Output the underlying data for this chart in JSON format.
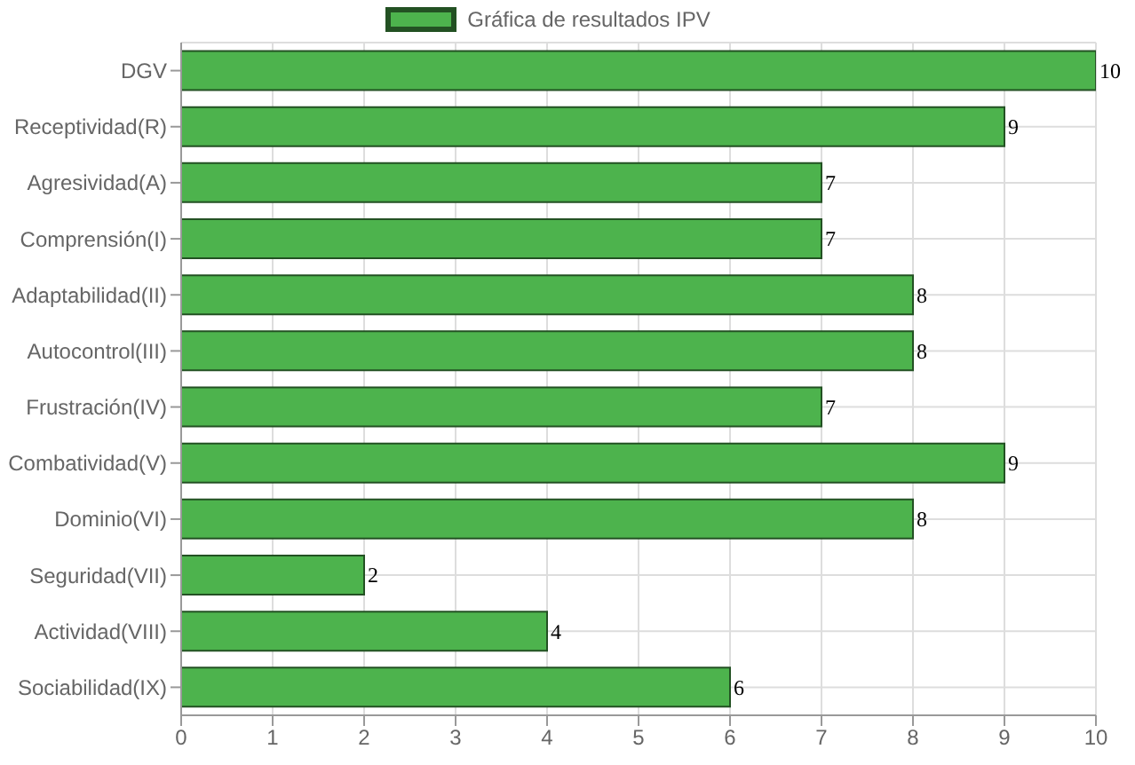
{
  "chart_data": {
    "type": "bar",
    "orientation": "horizontal",
    "categories": [
      "DGV",
      "Receptividad(R)",
      "Agresividad(A)",
      "Comprensión(I)",
      "Adaptabilidad(II)",
      "Autocontrol(III)",
      "Frustración(IV)",
      "Combatividad(V)",
      "Dominio(VI)",
      "Seguridad(VII)",
      "Actividad(VIII)",
      "Sociabilidad(IX)"
    ],
    "series": [
      {
        "name": "Gráfica de resultados IPV",
        "color": "#4db34d",
        "values": [
          10,
          9,
          7,
          7,
          8,
          8,
          7,
          9,
          8,
          2,
          4,
          6
        ]
      }
    ],
    "xlim": [
      0,
      10
    ],
    "xticks": [
      0,
      1,
      2,
      3,
      4,
      5,
      6,
      7,
      8,
      9,
      10
    ],
    "grid": true,
    "legend": "top",
    "data_labels": true
  }
}
